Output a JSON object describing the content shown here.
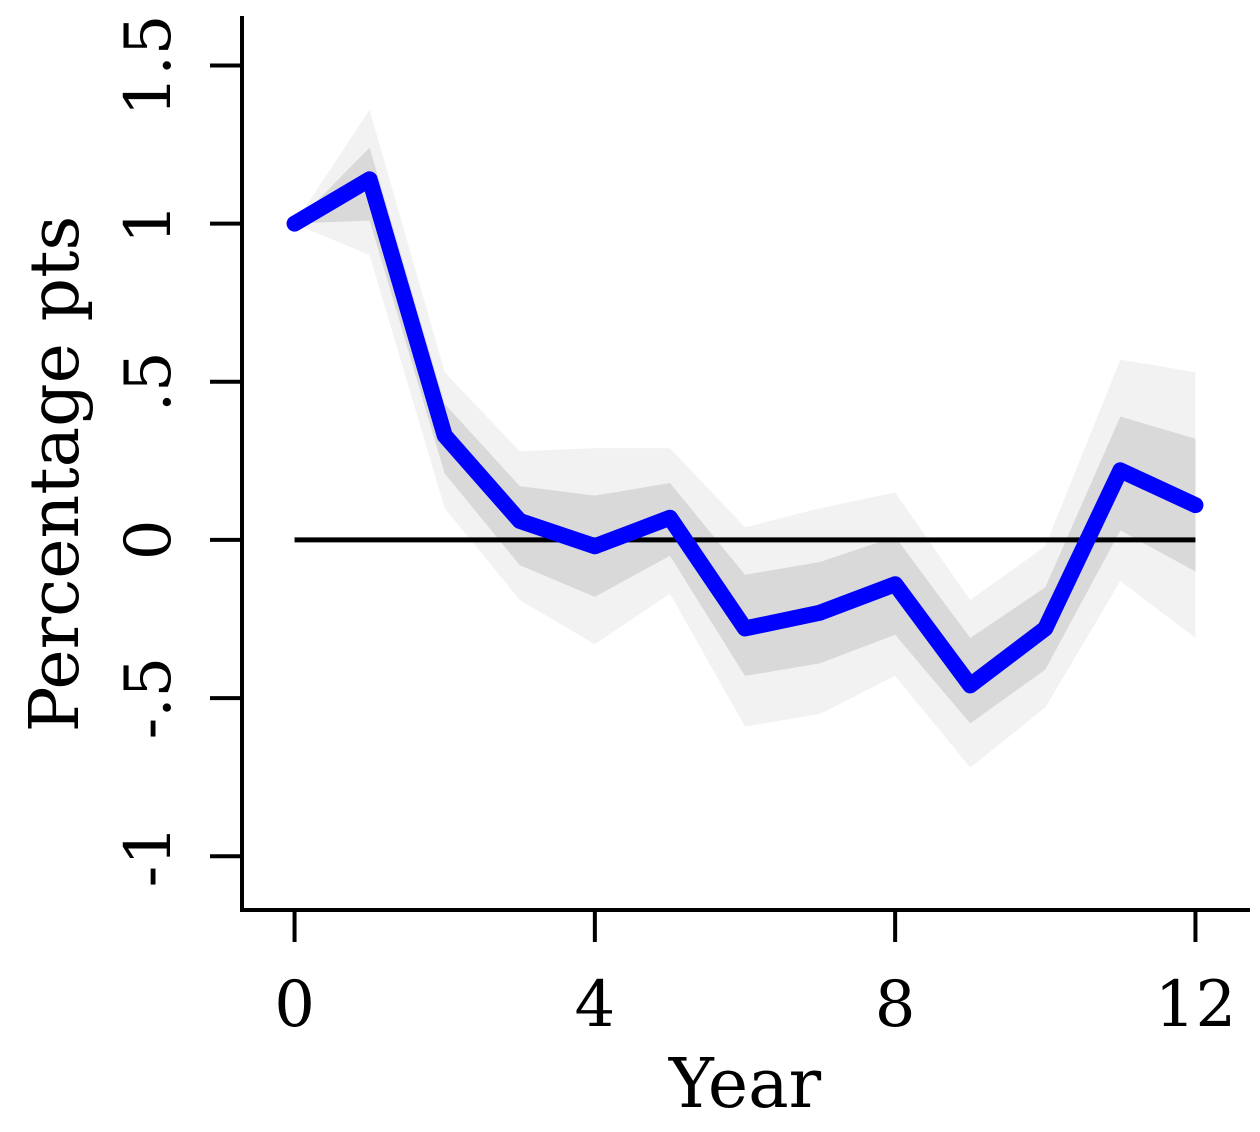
{
  "chart_data": {
    "type": "line",
    "title": "",
    "xlabel": "Year",
    "ylabel": "Percentage pts",
    "x": [
      0,
      1,
      2,
      3,
      4,
      5,
      6,
      7,
      8,
      9,
      10,
      11,
      12
    ],
    "xlim": [
      -0.7,
      12.7
    ],
    "ylim": [
      -1.17,
      1.65
    ],
    "xticks": [
      0,
      4,
      8,
      12
    ],
    "xtick_labels": [
      "0",
      "4",
      "8",
      "12"
    ],
    "yticks": [
      -1,
      -0.5,
      0,
      0.5,
      1,
      1.5
    ],
    "ytick_labels": [
      "-1",
      "-.5",
      "0",
      ".5",
      "1",
      "1.5"
    ],
    "reference_line_y": 0,
    "grid": false,
    "series": [
      {
        "values": [
          1.0,
          1.14,
          0.33,
          0.06,
          -0.02,
          0.07,
          -0.28,
          -0.23,
          -0.14,
          -0.46,
          -0.28,
          0.22,
          0.11
        ],
        "color": "#0000ff"
      }
    ],
    "bands": [
      {
        "level": "outer",
        "color": "#f2f2f2",
        "lower": [
          1.0,
          0.9,
          0.1,
          -0.19,
          -0.33,
          -0.17,
          -0.59,
          -0.55,
          -0.43,
          -0.72,
          -0.53,
          -0.13,
          -0.31
        ],
        "upper": [
          1.0,
          1.36,
          0.53,
          0.28,
          0.29,
          0.29,
          0.04,
          0.1,
          0.15,
          -0.19,
          -0.02,
          0.57,
          0.53
        ]
      },
      {
        "level": "inner",
        "color": "#d9d9d9",
        "lower": [
          1.0,
          1.01,
          0.21,
          -0.08,
          -0.18,
          -0.05,
          -0.43,
          -0.39,
          -0.3,
          -0.58,
          -0.41,
          0.03,
          -0.1
        ],
        "upper": [
          1.0,
          1.24,
          0.43,
          0.17,
          0.14,
          0.18,
          -0.11,
          -0.07,
          0.01,
          -0.31,
          -0.15,
          0.39,
          0.32
        ]
      }
    ]
  }
}
